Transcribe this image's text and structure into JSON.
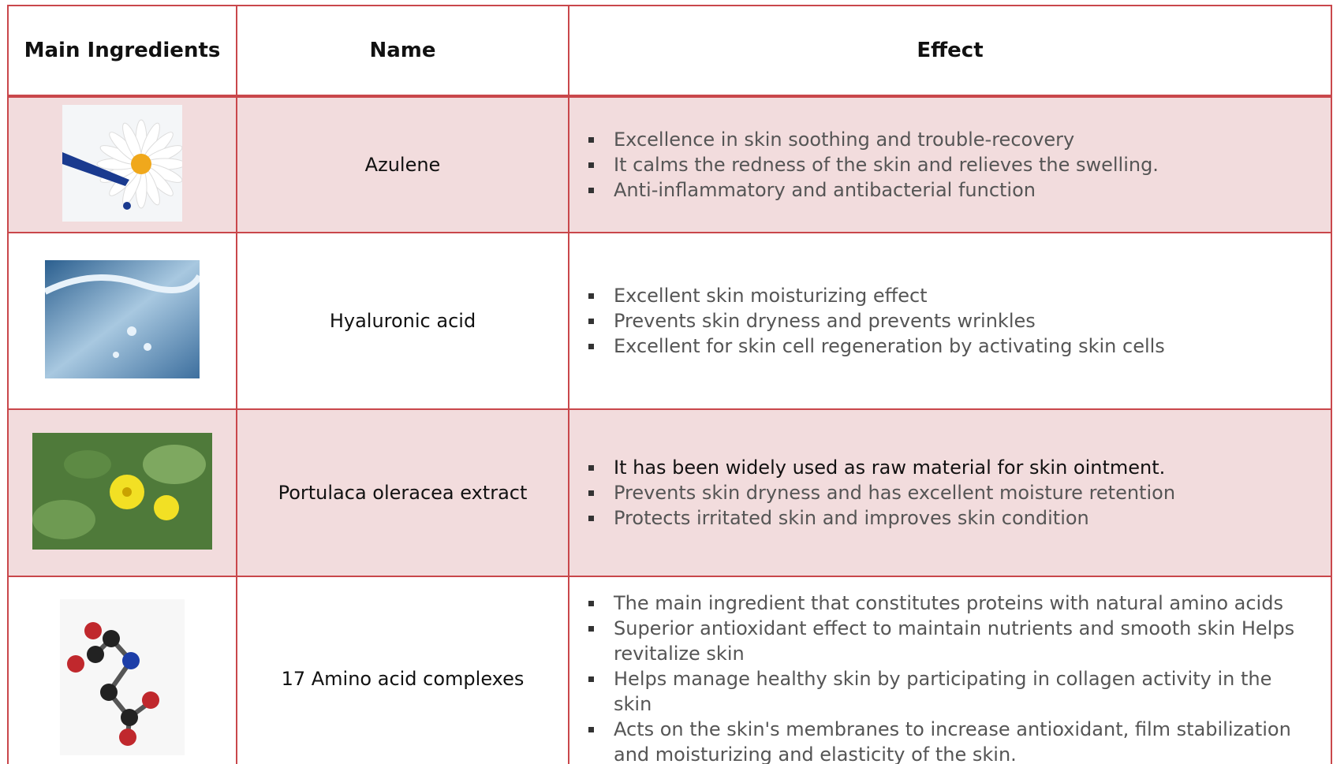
{
  "table": {
    "header": [
      "Main Ingredients",
      "Name",
      "Effect"
    ],
    "rows": [
      {
        "name": "Azulene",
        "effects": [
          "Excellence in skin soothing and trouble-recovery",
          "It calms the redness of the skin and relieves the swelling.",
          "Anti-inflammatory and antibacterial function"
        ]
      },
      {
        "name": "Hyaluronic acid",
        "effects": [
          "Excellent skin moisturizing effect",
          "Prevents skin dryness and prevents wrinkles",
          "Excellent for skin cell regeneration by activating skin cells"
        ]
      },
      {
        "name": "Portulaca oleracea extract",
        "effects": [
          "It has been widely used as raw material for skin ointment.",
          "Prevents skin dryness and has excellent moisture retention",
          "Protects irritated skin and improves skin condition"
        ]
      },
      {
        "name": "17 Amino acid complexes",
        "effects": [
          "The main ingredient that constitutes proteins with natural amino acids",
          "Superior antioxidant effect to maintain nutrients and smooth skin Helps revitalize skin",
          "Helps manage healthy skin by participating in collagen activity in the skin",
          "Acts on the skin's membranes to increase antioxidant, film stabilization and moisturizing and elasticity of the skin."
        ]
      }
    ]
  }
}
